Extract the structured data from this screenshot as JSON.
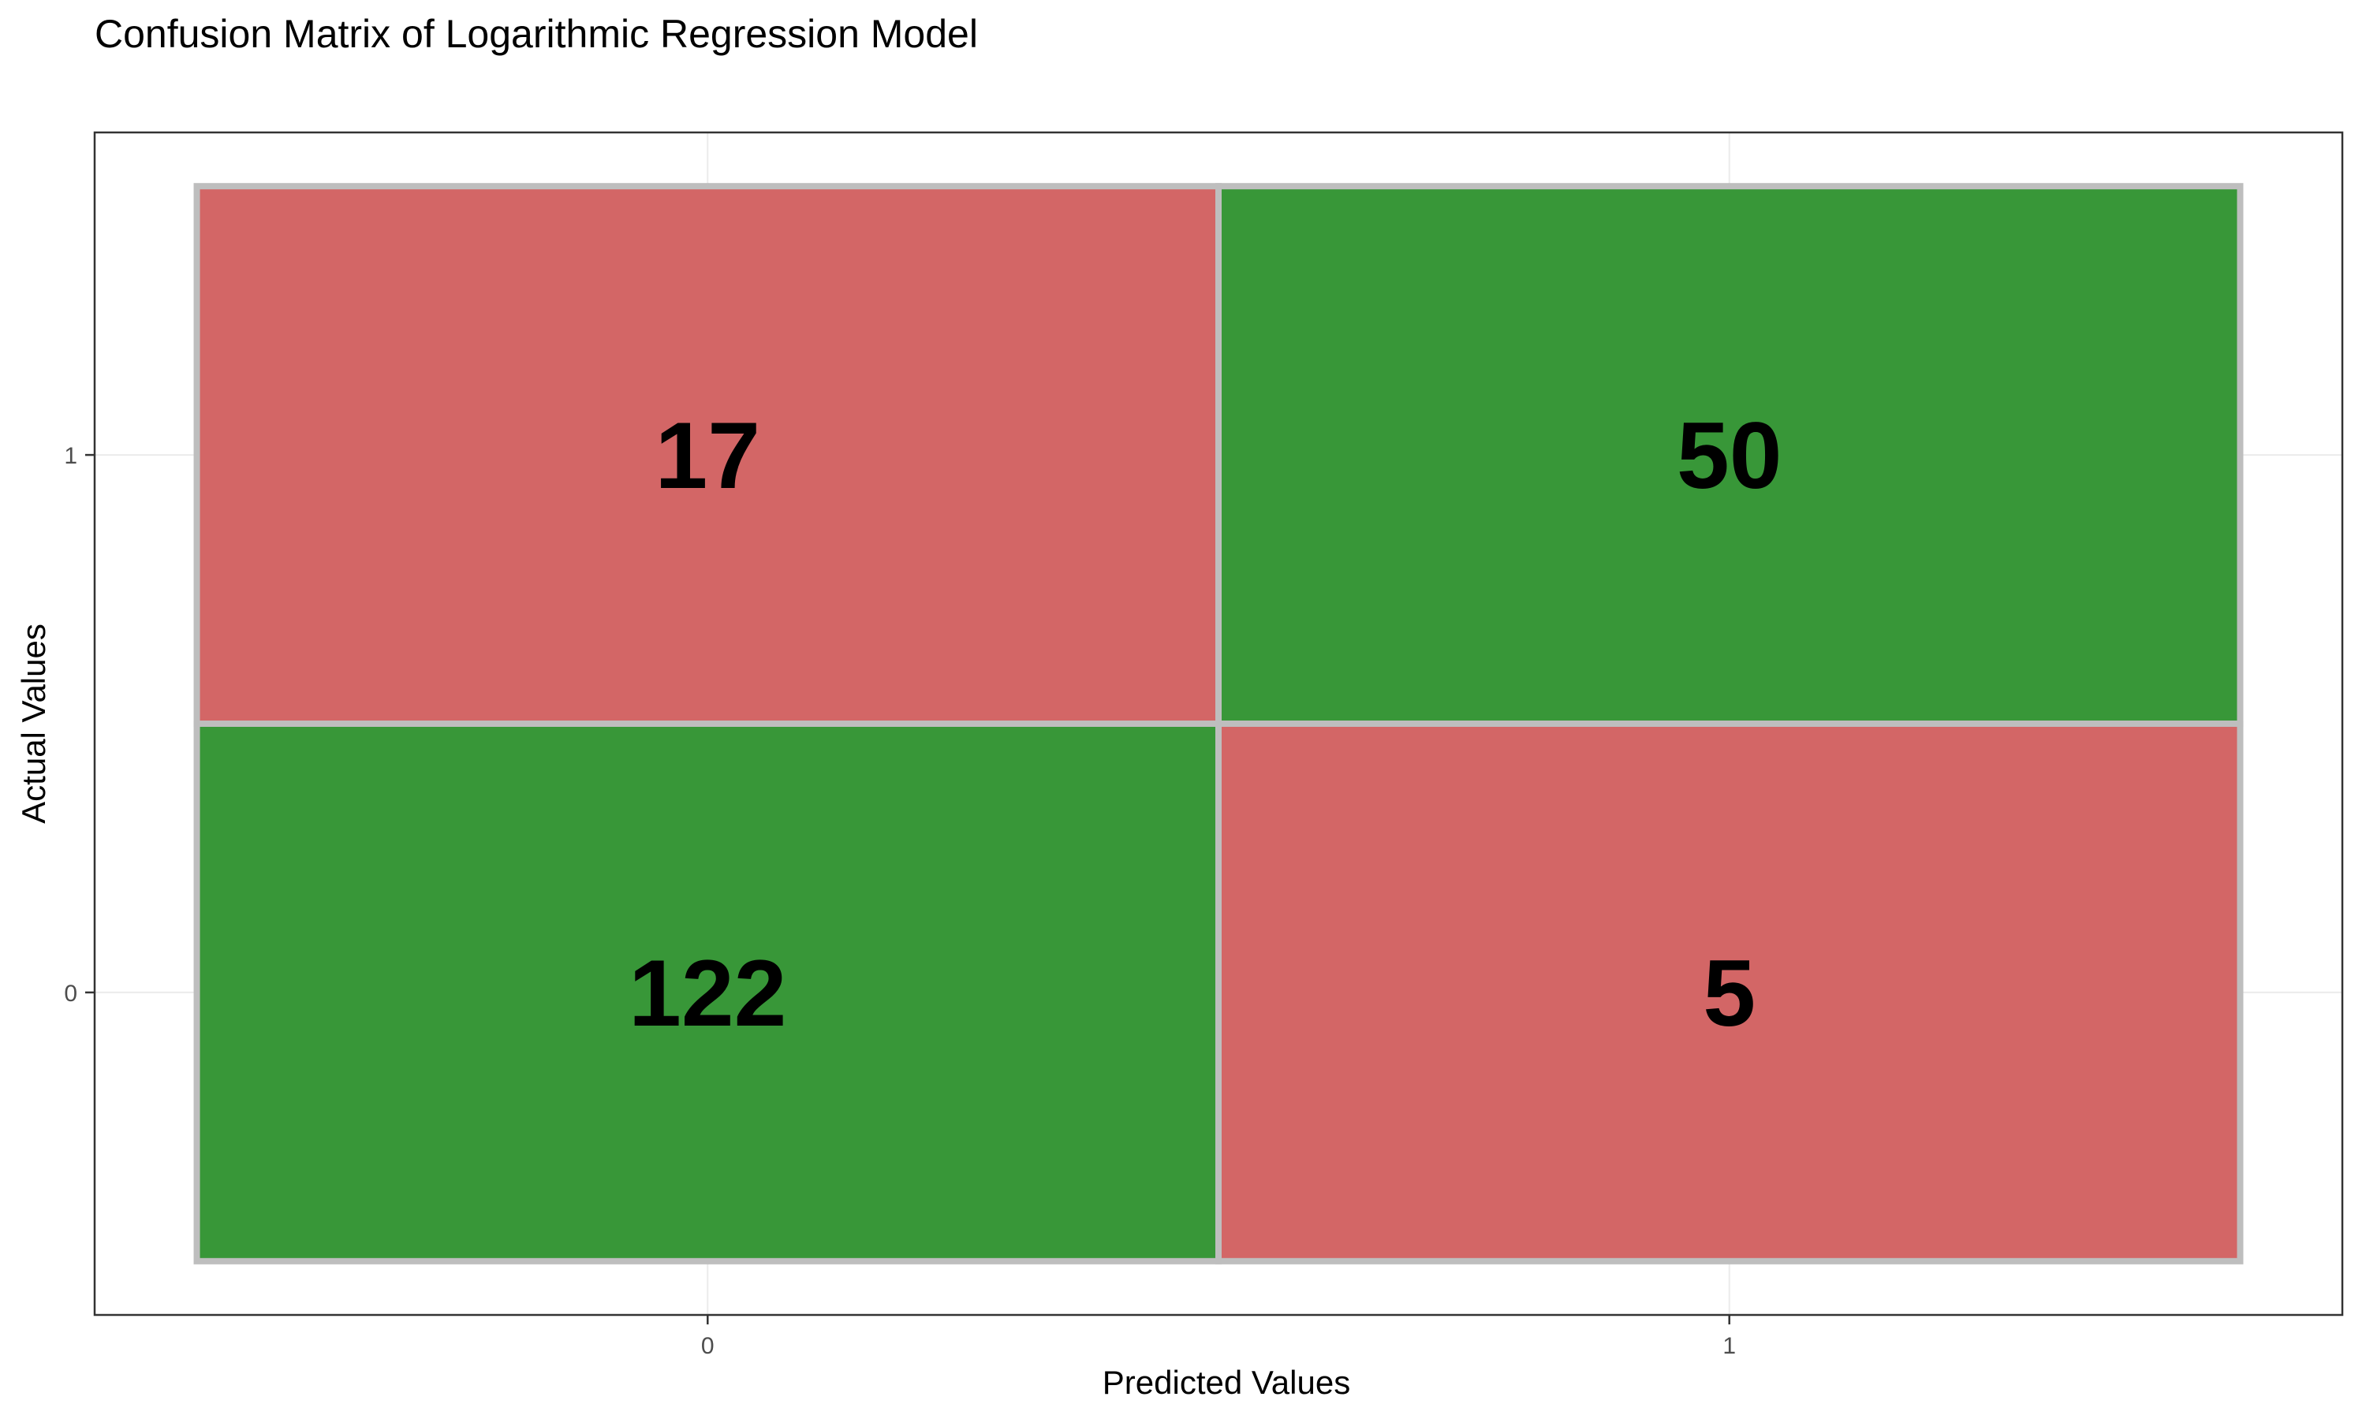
{
  "chart_data": {
    "type": "heatmap",
    "title": "Confusion Matrix of Logarithmic Regression Model",
    "xlabel": "Predicted Values",
    "ylabel": "Actual Values",
    "x_categories": [
      "0",
      "1"
    ],
    "y_categories": [
      "0",
      "1"
    ],
    "cells": [
      {
        "predicted": "0",
        "actual": "1",
        "value": 17,
        "label": "17",
        "correct": false
      },
      {
        "predicted": "1",
        "actual": "1",
        "value": 50,
        "label": "50",
        "correct": true
      },
      {
        "predicted": "0",
        "actual": "0",
        "value": 122,
        "label": "122",
        "correct": true
      },
      {
        "predicted": "1",
        "actual": "0",
        "value": 5,
        "label": "5",
        "correct": false
      }
    ],
    "colors": {
      "correct": "#389738",
      "incorrect": "#d36666",
      "cell_border": "#bebebe",
      "grid": "#ebebeb",
      "panel_border": "#333333"
    },
    "grid": true,
    "legend": "none"
  }
}
